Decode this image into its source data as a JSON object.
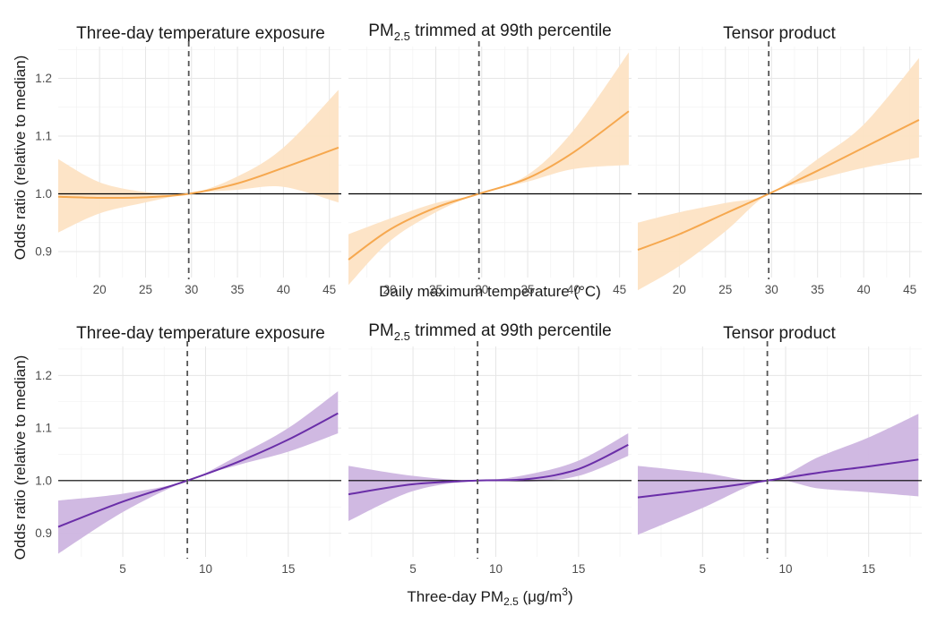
{
  "colors": {
    "temperature": "#f6a84f",
    "temperature_band": "#fde3c4",
    "pm25": "#6a2ea8",
    "pm25_band": "#cdb5e0"
  },
  "rows": [
    {
      "x_axis_label": "Daily maximum temperature (°C)",
      "y_axis_label": "Odds ratio (relative to median)",
      "y_ticks": [
        "0.9",
        "1.0",
        "1.1",
        "1.2"
      ],
      "x_ticks": [
        "20",
        "25",
        "30",
        "35",
        "40",
        "45"
      ]
    },
    {
      "x_axis_label_pre": "Three-day PM",
      "x_axis_label_sub": "2.5",
      "x_axis_label_post": " (μg/m",
      "x_axis_label_sup": "3",
      "x_axis_label_end": ")",
      "y_axis_label": "Odds ratio (relative to median)",
      "y_ticks": [
        "0.9",
        "1.0",
        "1.1",
        "1.2"
      ],
      "x_ticks": [
        "5",
        "10",
        "15"
      ]
    }
  ],
  "panel_titles": [
    {
      "text": "Three-day temperature exposure"
    },
    {
      "pre": "PM",
      "sub": "2.5",
      "post": " trimmed at 99th percentile"
    },
    {
      "text": "Tensor product"
    }
  ],
  "chart_data": [
    {
      "type": "line",
      "title": "Three-day temperature exposure",
      "xlabel": "Daily maximum temperature (°C)",
      "ylabel": "Odds ratio (relative to median)",
      "xlim": [
        15.5,
        46.3
      ],
      "ylim": [
        0.855,
        1.255
      ],
      "reference_x": 29.7,
      "reference_y": 1.0,
      "x": [
        15.5,
        20,
        25,
        29.7,
        35,
        40,
        46
      ],
      "fit": [
        0.995,
        0.993,
        0.994,
        1.0,
        1.018,
        1.045,
        1.08
      ],
      "lower": [
        0.933,
        0.966,
        0.985,
        1.0,
        1.007,
        1.012,
        0.985
      ],
      "upper": [
        1.06,
        1.02,
        1.003,
        1.0,
        1.03,
        1.08,
        1.18
      ]
    },
    {
      "type": "line",
      "title": "PM2.5 trimmed at 99th percentile",
      "xlabel": "Daily maximum temperature (°C)",
      "ylabel": "Odds ratio (relative to median)",
      "xlim": [
        15.5,
        46.3
      ],
      "ylim": [
        0.855,
        1.255
      ],
      "reference_x": 29.7,
      "reference_y": 1.0,
      "x": [
        15.5,
        20,
        25,
        29.7,
        35,
        40,
        46
      ],
      "fit": [
        0.886,
        0.938,
        0.976,
        1.0,
        1.027,
        1.072,
        1.143
      ],
      "lower": [
        0.842,
        0.918,
        0.968,
        1.0,
        1.021,
        1.043,
        1.05
      ],
      "upper": [
        0.93,
        0.957,
        0.984,
        1.0,
        1.033,
        1.11,
        1.245
      ]
    },
    {
      "type": "line",
      "title": "Tensor product",
      "xlabel": "Daily maximum temperature (°C)",
      "ylabel": "Odds ratio (relative to median)",
      "xlim": [
        15.5,
        46.3
      ],
      "ylim": [
        0.855,
        1.255
      ],
      "reference_x": 29.7,
      "reference_y": 1.0,
      "x": [
        15.5,
        20,
        25,
        29.7,
        35,
        40,
        46
      ],
      "fit": [
        0.903,
        0.93,
        0.966,
        1.0,
        1.04,
        1.08,
        1.128
      ],
      "lower": [
        0.833,
        0.875,
        0.935,
        1.0,
        1.025,
        1.045,
        1.063
      ],
      "upper": [
        0.95,
        0.968,
        0.984,
        1.0,
        1.06,
        1.12,
        1.235
      ]
    },
    {
      "type": "line",
      "title": "Three-day temperature exposure",
      "xlabel": "Three-day PM2.5 (μg/m3)",
      "ylabel": "Odds ratio (relative to median)",
      "xlim": [
        1.1,
        18.2
      ],
      "ylim": [
        0.855,
        1.255
      ],
      "reference_x": 8.9,
      "reference_y": 1.0,
      "x": [
        1.1,
        5,
        8.9,
        12,
        15,
        18
      ],
      "fit": [
        0.912,
        0.96,
        1.0,
        1.036,
        1.078,
        1.128
      ],
      "lower": [
        0.861,
        0.94,
        1.0,
        1.03,
        1.055,
        1.09
      ],
      "upper": [
        0.962,
        0.975,
        1.0,
        1.048,
        1.1,
        1.17
      ]
    },
    {
      "type": "line",
      "title": "PM2.5 trimmed at 99th percentile",
      "xlabel": "Three-day PM2.5 (μg/m3)",
      "ylabel": "Odds ratio (relative to median)",
      "xlim": [
        1.1,
        18.2
      ],
      "ylim": [
        0.855,
        1.255
      ],
      "reference_x": 8.9,
      "reference_y": 1.0,
      "x": [
        1.1,
        5,
        8.9,
        12,
        15,
        18
      ],
      "fit": [
        0.974,
        0.993,
        1.0,
        1.003,
        1.022,
        1.068
      ],
      "lower": [
        0.923,
        0.98,
        1.0,
        0.998,
        1.009,
        1.047
      ],
      "upper": [
        1.028,
        1.009,
        1.0,
        1.012,
        1.038,
        1.09
      ]
    },
    {
      "type": "line",
      "title": "Tensor product",
      "xlabel": "Three-day PM2.5 (μg/m3)",
      "ylabel": "Odds ratio (relative to median)",
      "xlim": [
        1.1,
        18.2
      ],
      "ylim": [
        0.855,
        1.255
      ],
      "reference_x": 8.9,
      "reference_y": 1.0,
      "x": [
        1.1,
        5,
        8.9,
        12,
        15,
        18
      ],
      "fit": [
        0.968,
        0.983,
        1.0,
        1.015,
        1.027,
        1.04
      ],
      "lower": [
        0.897,
        0.948,
        1.0,
        0.985,
        0.978,
        0.97
      ],
      "upper": [
        1.028,
        1.015,
        1.0,
        1.045,
        1.082,
        1.127
      ]
    }
  ]
}
